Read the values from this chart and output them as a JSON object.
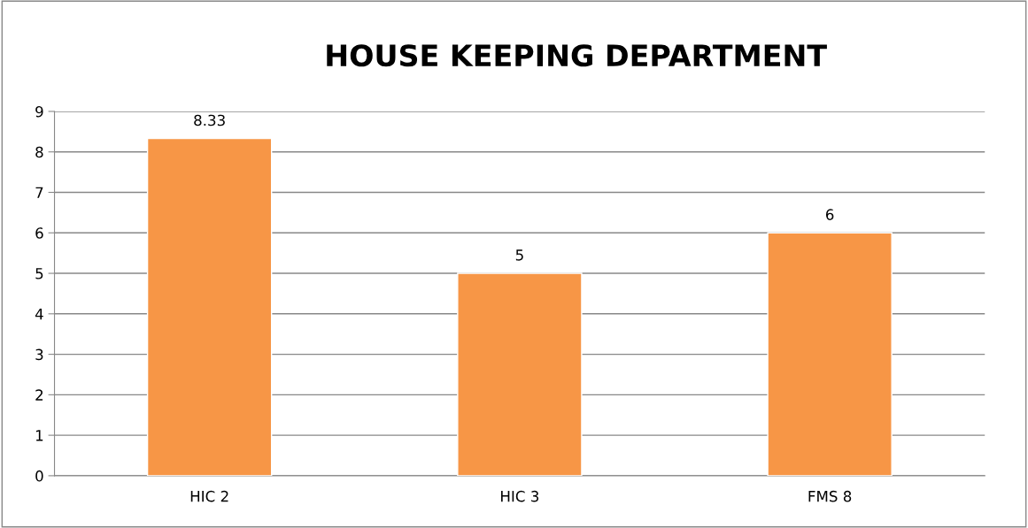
{
  "chart_data": {
    "type": "bar",
    "title": "HOUSE KEEPING DEPARTMENT",
    "categories": [
      "HIC 2",
      "HIC 3",
      "FMS 8"
    ],
    "values": [
      8.33,
      5,
      6
    ],
    "color": "#f79646",
    "ylim": [
      0,
      9
    ],
    "yticks": [
      0,
      1,
      2,
      3,
      4,
      5,
      6,
      7,
      8,
      9
    ],
    "grid": "y",
    "data_labels": true
  }
}
